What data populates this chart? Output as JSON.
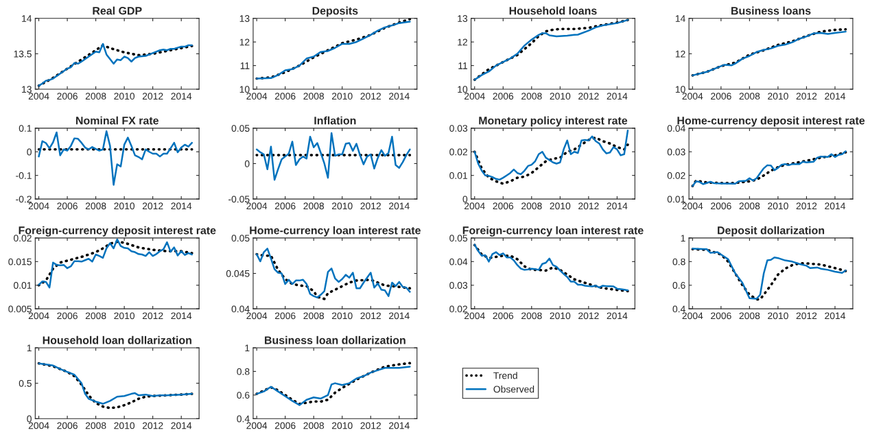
{
  "chart_data": [
    {
      "type": "line",
      "title": "Real GDP",
      "xlim": [
        2003.75,
        2015.25
      ],
      "xticks": [
        2004,
        2006,
        2008,
        2010,
        2012,
        2014
      ],
      "ylim": [
        13,
        14
      ],
      "yticks": [
        13,
        13.5,
        14
      ],
      "series": [
        {
          "color": "#000000",
          "line_style": "dotted",
          "x": [
            2004,
            2005,
            2006,
            2007,
            2008,
            2008.5,
            2009,
            2010,
            2011,
            2012,
            2013,
            2014,
            2014.75
          ],
          "values": [
            13.05,
            13.16,
            13.29,
            13.42,
            13.55,
            13.62,
            13.58,
            13.52,
            13.48,
            13.5,
            13.54,
            13.58,
            13.61
          ]
        },
        {
          "color": "#0072bd",
          "line_style": "solid",
          "x": [
            2004,
            2004.25,
            2004.5,
            2004.75,
            2005,
            2005.5,
            2006,
            2006.25,
            2006.5,
            2006.75,
            2007,
            2007.5,
            2008,
            2008.25,
            2008.5,
            2008.75,
            2009.25,
            2009.5,
            2009.75,
            2010,
            2010.25,
            2010.5,
            2010.75,
            2011,
            2011.5,
            2012,
            2012.5,
            2012.75,
            2013,
            2013.25,
            2013.5,
            2014,
            2014.25,
            2014.5,
            2014.75
          ],
          "values": [
            13.05,
            13.08,
            13.12,
            13.13,
            13.15,
            13.22,
            13.29,
            13.31,
            13.37,
            13.36,
            13.39,
            13.46,
            13.53,
            13.52,
            13.64,
            13.49,
            13.36,
            13.42,
            13.41,
            13.46,
            13.44,
            13.39,
            13.44,
            13.46,
            13.47,
            13.51,
            13.55,
            13.56,
            13.55,
            13.57,
            13.57,
            13.6,
            13.6,
            13.62,
            13.62
          ]
        }
      ]
    },
    {
      "type": "line",
      "title": "Deposits",
      "xlim": [
        2003.75,
        2015.25
      ],
      "xticks": [
        2004,
        2006,
        2008,
        2010,
        2012,
        2014
      ],
      "ylim": [
        10,
        13
      ],
      "yticks": [
        10,
        11,
        12,
        13
      ],
      "series": [
        {
          "color": "#000000",
          "line_style": "dotted",
          "x": [
            2004,
            2005,
            2006,
            2007,
            2008,
            2009,
            2010,
            2011,
            2012,
            2013,
            2014,
            2014.75
          ],
          "values": [
            10.45,
            10.5,
            10.72,
            11.0,
            11.35,
            11.65,
            11.95,
            12.1,
            12.3,
            12.6,
            12.82,
            12.97
          ]
        },
        {
          "color": "#0072bd",
          "line_style": "solid",
          "x": [
            2004,
            2005,
            2005.5,
            2006,
            2006.5,
            2007,
            2007.5,
            2008,
            2008.5,
            2009,
            2009.5,
            2010,
            2010.5,
            2011,
            2011.5,
            2012,
            2012.5,
            2013,
            2013.5,
            2014,
            2014.75
          ],
          "values": [
            10.45,
            10.47,
            10.6,
            10.8,
            10.85,
            11.0,
            11.3,
            11.38,
            11.58,
            11.62,
            11.75,
            11.92,
            11.92,
            12.0,
            12.15,
            12.3,
            12.48,
            12.62,
            12.7,
            12.8,
            12.86
          ]
        }
      ]
    },
    {
      "type": "line",
      "title": "Household loans",
      "xlim": [
        2003.75,
        2015.25
      ],
      "xticks": [
        2004,
        2006,
        2008,
        2010,
        2012,
        2014
      ],
      "ylim": [
        10,
        13
      ],
      "yticks": [
        10,
        11,
        12,
        13
      ],
      "series": [
        {
          "color": "#000000",
          "line_style": "dotted",
          "x": [
            2004,
            2005,
            2006,
            2007,
            2008,
            2008.5,
            2009,
            2009.5,
            2010,
            2011,
            2012,
            2013,
            2014,
            2014.75
          ],
          "values": [
            10.4,
            10.85,
            11.15,
            11.45,
            11.95,
            12.25,
            12.45,
            12.52,
            12.55,
            12.55,
            12.6,
            12.72,
            12.82,
            12.93
          ]
        },
        {
          "color": "#0072bd",
          "line_style": "solid",
          "x": [
            2004,
            2004.5,
            2005,
            2005.5,
            2006,
            2006.5,
            2007,
            2007.5,
            2008,
            2008.5,
            2008.75,
            2009,
            2009.25,
            2009.75,
            2010.5,
            2011,
            2011.25,
            2012,
            2012.5,
            2013,
            2014,
            2014.75
          ],
          "values": [
            10.4,
            10.6,
            10.75,
            11.0,
            11.15,
            11.3,
            11.5,
            11.85,
            12.1,
            12.3,
            12.37,
            12.37,
            12.28,
            12.24,
            12.27,
            12.3,
            12.31,
            12.48,
            12.62,
            12.7,
            12.8,
            12.93
          ]
        }
      ]
    },
    {
      "type": "line",
      "title": "Business loans",
      "xlim": [
        2003.75,
        2015.25
      ],
      "xticks": [
        2004,
        2006,
        2008,
        2010,
        2012,
        2014
      ],
      "ylim": [
        10,
        14
      ],
      "yticks": [
        10,
        12,
        14
      ],
      "series": [
        {
          "color": "#000000",
          "line_style": "dotted",
          "x": [
            2004,
            2005,
            2006,
            2007,
            2008,
            2009,
            2010,
            2011,
            2012,
            2013,
            2014,
            2014.75
          ],
          "values": [
            10.78,
            10.98,
            11.3,
            11.5,
            11.95,
            12.2,
            12.5,
            12.7,
            13.0,
            13.25,
            13.35,
            13.38
          ]
        },
        {
          "color": "#0072bd",
          "line_style": "solid",
          "x": [
            2004,
            2005,
            2006,
            2006.25,
            2006.75,
            2007,
            2007.5,
            2008,
            2008.5,
            2009,
            2009.5,
            2010,
            2010.5,
            2011,
            2011.5,
            2012,
            2012.5,
            2013,
            2013.5,
            2014,
            2014.75
          ],
          "values": [
            10.78,
            10.98,
            11.3,
            11.38,
            11.35,
            11.45,
            11.72,
            11.88,
            12.1,
            12.22,
            12.3,
            12.45,
            12.52,
            12.65,
            12.85,
            12.98,
            13.15,
            13.18,
            13.12,
            13.18,
            13.25
          ]
        }
      ]
    },
    {
      "type": "line",
      "title": "Nominal FX rate",
      "xlim": [
        2003.75,
        2015.25
      ],
      "xticks": [
        2004,
        2006,
        2008,
        2010,
        2012,
        2014
      ],
      "ylim": [
        -0.2,
        0.1
      ],
      "yticks": [
        -0.2,
        -0.1,
        0,
        0.1
      ],
      "series": [
        {
          "color": "#000000",
          "line_style": "dotted",
          "x": [
            2004,
            2014.75
          ],
          "values": [
            0.01,
            0.01
          ]
        },
        {
          "color": "#0072bd",
          "line_style": "solid",
          "x": [
            2004,
            2004.25,
            2004.5,
            2004.75,
            2005,
            2005.25,
            2005.5,
            2005.75,
            2006,
            2006.25,
            2006.5,
            2006.75,
            2007,
            2007.25,
            2007.5,
            2007.75,
            2008,
            2008.25,
            2008.5,
            2008.75,
            2009,
            2009.25,
            2009.5,
            2009.75,
            2010,
            2010.25,
            2010.5,
            2010.75,
            2011,
            2011.25,
            2011.5,
            2011.75,
            2012,
            2012.25,
            2012.5,
            2012.75,
            2013,
            2013.25,
            2013.5,
            2013.75,
            2014,
            2014.25,
            2014.5,
            2014.75
          ],
          "values": [
            -0.02,
            0.045,
            0.037,
            0.015,
            0.04,
            0.082,
            -0.015,
            0.01,
            0.005,
            0.025,
            0.057,
            0.055,
            0.038,
            0.018,
            0.01,
            0.02,
            0.012,
            0.005,
            0.01,
            0.087,
            0.025,
            -0.14,
            -0.053,
            -0.062,
            0.03,
            0.06,
            0.025,
            -0.015,
            -0.022,
            -0.032,
            0.01,
            0.0,
            -0.008,
            -0.008,
            -0.02,
            -0.008,
            -0.008,
            0.015,
            0.038,
            -0.002,
            0.018,
            0.03,
            0.022,
            0.038
          ]
        }
      ]
    },
    {
      "type": "line",
      "title": "Inflation",
      "xlim": [
        2003.75,
        2015.25
      ],
      "xticks": [
        2004,
        2006,
        2008,
        2010,
        2012,
        2014
      ],
      "ylim": [
        -0.05,
        0.05
      ],
      "yticks": [
        -0.05,
        0,
        0.05
      ],
      "series": [
        {
          "color": "#000000",
          "line_style": "dotted",
          "x": [
            2004,
            2014.75
          ],
          "values": [
            0.012,
            0.012
          ]
        },
        {
          "color": "#0072bd",
          "line_style": "solid",
          "x": [
            2004,
            2004.25,
            2004.5,
            2004.75,
            2005,
            2005.25,
            2005.5,
            2005.75,
            2006,
            2006.25,
            2006.5,
            2006.75,
            2007,
            2007.25,
            2007.5,
            2007.75,
            2008,
            2008.25,
            2008.5,
            2008.75,
            2009,
            2009.25,
            2009.5,
            2009.75,
            2010,
            2010.25,
            2010.5,
            2010.75,
            2011,
            2011.25,
            2011.5,
            2011.75,
            2012,
            2012.25,
            2012.5,
            2012.75,
            2013,
            2013.25,
            2013.5,
            2013.75,
            2014,
            2014.25,
            2014.5,
            2014.75
          ],
          "values": [
            0.02,
            0.016,
            0.013,
            -0.008,
            0.024,
            -0.023,
            -0.008,
            0.006,
            0.01,
            0.014,
            0.031,
            -0.002,
            0.006,
            0.01,
            0.007,
            0.038,
            0.023,
            0.029,
            0.015,
            0.0,
            -0.02,
            0.043,
            0.011,
            0.013,
            0.013,
            0.028,
            0.029,
            0.018,
            0.028,
            0.012,
            -0.001,
            0.01,
            0.013,
            -0.007,
            0.008,
            0.019,
            0.011,
            0.015,
            0.038,
            -0.002,
            -0.006,
            0.002,
            0.012,
            0.02
          ]
        }
      ]
    },
    {
      "type": "line",
      "title": "Monetary policy interest rate",
      "xlim": [
        2003.75,
        2015.25
      ],
      "xticks": [
        2004,
        2006,
        2008,
        2010,
        2012,
        2014
      ],
      "ylim": [
        0,
        0.03
      ],
      "yticks": [
        0,
        0.01,
        0.02,
        0.03
      ],
      "series": [
        {
          "color": "#000000",
          "line_style": "dotted",
          "x": [
            2004,
            2004.5,
            2005,
            2005.5,
            2006,
            2006.5,
            2007,
            2007.5,
            2008,
            2008.5,
            2009,
            2009.5,
            2010,
            2010.5,
            2011,
            2011.5,
            2012,
            2012.5,
            2013,
            2013.5,
            2014,
            2014.5,
            2014.75
          ],
          "values": [
            0.02,
            0.013,
            0.009,
            0.0075,
            0.0065,
            0.0075,
            0.009,
            0.0095,
            0.011,
            0.0135,
            0.016,
            0.017,
            0.0175,
            0.02,
            0.021,
            0.023,
            0.025,
            0.026,
            0.0245,
            0.0235,
            0.022,
            0.021,
            0.023
          ]
        },
        {
          "color": "#0072bd",
          "line_style": "solid",
          "x": [
            2004,
            2004.25,
            2004.5,
            2004.75,
            2005,
            2005.25,
            2005.5,
            2005.75,
            2006,
            2006.25,
            2006.5,
            2006.75,
            2007,
            2007.25,
            2007.5,
            2007.75,
            2008,
            2008.25,
            2008.5,
            2008.75,
            2009,
            2009.25,
            2009.5,
            2009.75,
            2010,
            2010.25,
            2010.5,
            2010.75,
            2011,
            2011.25,
            2011.5,
            2011.75,
            2012,
            2012.25,
            2012.5,
            2012.75,
            2013,
            2013.25,
            2013.5,
            2013.75,
            2014,
            2014.25,
            2014.5,
            2014.75
          ],
          "values": [
            0.02,
            0.015,
            0.012,
            0.01,
            0.0098,
            0.0093,
            0.0085,
            0.0082,
            0.009,
            0.01,
            0.011,
            0.0125,
            0.011,
            0.0105,
            0.012,
            0.014,
            0.0145,
            0.016,
            0.019,
            0.02,
            0.0175,
            0.0165,
            0.0155,
            0.015,
            0.0155,
            0.021,
            0.0248,
            0.019,
            0.02,
            0.0195,
            0.0248,
            0.025,
            0.0248,
            0.0265,
            0.0245,
            0.0235,
            0.021,
            0.0193,
            0.0197,
            0.022,
            0.021,
            0.0185,
            0.019,
            0.029
          ]
        }
      ]
    },
    {
      "type": "line",
      "title": "Home-currency deposit interest rate",
      "xlim": [
        2003.75,
        2015.25
      ],
      "xticks": [
        2004,
        2006,
        2008,
        2010,
        2012,
        2014
      ],
      "ylim": [
        0.01,
        0.04
      ],
      "yticks": [
        0.01,
        0.02,
        0.03,
        0.04
      ],
      "series": [
        {
          "color": "#000000",
          "line_style": "dotted",
          "x": [
            2004,
            2004.25,
            2005,
            2006,
            2007,
            2008,
            2008.5,
            2009,
            2009.5,
            2010,
            2010.5,
            2011,
            2012,
            2013,
            2014,
            2014.75
          ],
          "values": [
            0.0155,
            0.0178,
            0.017,
            0.0168,
            0.0168,
            0.0175,
            0.0182,
            0.02,
            0.022,
            0.0235,
            0.0245,
            0.025,
            0.0262,
            0.0275,
            0.0285,
            0.0298
          ]
        },
        {
          "color": "#0072bd",
          "line_style": "solid",
          "x": [
            2004,
            2004.25,
            2004.5,
            2004.75,
            2005,
            2005.25,
            2005.5,
            2006,
            2007,
            2007.25,
            2007.75,
            2008,
            2008.25,
            2008.5,
            2008.75,
            2009,
            2009.25,
            2009.5,
            2009.75,
            2010,
            2010.25,
            2010.5,
            2010.75,
            2011,
            2011.5,
            2011.75,
            2012,
            2012.5,
            2012.75,
            2013,
            2013.5,
            2013.75,
            2014,
            2014.25,
            2014.5,
            2014.75
          ],
          "values": [
            0.0155,
            0.0175,
            0.0172,
            0.0163,
            0.0168,
            0.0173,
            0.0167,
            0.0166,
            0.0165,
            0.0175,
            0.0177,
            0.0188,
            0.0178,
            0.0188,
            0.021,
            0.023,
            0.0243,
            0.0242,
            0.0222,
            0.0232,
            0.0245,
            0.0248,
            0.0243,
            0.0248,
            0.0248,
            0.0258,
            0.0255,
            0.0258,
            0.0275,
            0.028,
            0.0278,
            0.029,
            0.0278,
            0.0287,
            0.029,
            0.0302
          ]
        }
      ]
    },
    {
      "type": "line",
      "title": "Foreign-currency deposit interest rate",
      "xlim": [
        2003.75,
        2015.25
      ],
      "xticks": [
        2004,
        2006,
        2008,
        2010,
        2012,
        2014
      ],
      "ylim": [
        0.005,
        0.02
      ],
      "yticks": [
        0.005,
        0.01,
        0.015,
        0.02
      ],
      "series": [
        {
          "color": "#000000",
          "line_style": "dotted",
          "x": [
            2004,
            2004.5,
            2005,
            2005.5,
            2006,
            2007,
            2008,
            2008.5,
            2009,
            2009.5,
            2010,
            2010.5,
            2011,
            2012,
            2013,
            2014,
            2014.75
          ],
          "values": [
            0.01,
            0.011,
            0.0135,
            0.0148,
            0.0152,
            0.016,
            0.017,
            0.0178,
            0.0188,
            0.0192,
            0.019,
            0.0185,
            0.018,
            0.0175,
            0.0172,
            0.0172,
            0.0168
          ]
        },
        {
          "color": "#0072bd",
          "line_style": "solid",
          "x": [
            2004,
            2004.25,
            2004.5,
            2004.75,
            2005,
            2005.25,
            2005.5,
            2005.75,
            2006,
            2006.25,
            2006.5,
            2006.75,
            2007,
            2007.25,
            2007.5,
            2007.75,
            2008,
            2008.25,
            2008.5,
            2008.75,
            2009,
            2009.25,
            2009.5,
            2009.75,
            2010,
            2010.25,
            2010.5,
            2010.75,
            2011,
            2011.25,
            2011.5,
            2011.75,
            2012,
            2012.25,
            2012.5,
            2012.75,
            2013,
            2013.25,
            2013.5,
            2013.75,
            2014,
            2014.25,
            2014.5,
            2014.75
          ],
          "values": [
            0.0101,
            0.0108,
            0.0107,
            0.0095,
            0.0148,
            0.0143,
            0.0142,
            0.0143,
            0.0136,
            0.014,
            0.0151,
            0.0151,
            0.015,
            0.0153,
            0.0156,
            0.015,
            0.0165,
            0.0162,
            0.0158,
            0.0178,
            0.0189,
            0.0178,
            0.0197,
            0.0183,
            0.0179,
            0.0178,
            0.0172,
            0.017,
            0.0166,
            0.0165,
            0.0162,
            0.017,
            0.0162,
            0.0166,
            0.0172,
            0.0176,
            0.0191,
            0.0171,
            0.018,
            0.0163,
            0.0172,
            0.0164,
            0.0168,
            0.0165
          ]
        }
      ]
    },
    {
      "type": "line",
      "title": "Home-currency loan interest rate",
      "xlim": [
        2003.75,
        2015.25
      ],
      "xticks": [
        2004,
        2006,
        2008,
        2010,
        2012,
        2014
      ],
      "ylim": [
        0.04,
        0.05
      ],
      "yticks": [
        0.04,
        0.045,
        0.05
      ],
      "series": [
        {
          "color": "#000000",
          "line_style": "dotted",
          "x": [
            2004,
            2004.5,
            2005,
            2005.5,
            2006,
            2006.5,
            2007,
            2007.5,
            2008,
            2008.25,
            2008.75,
            2009,
            2009.5,
            2010,
            2010.5,
            2011,
            2012,
            2012.5,
            2013,
            2014,
            2014.75
          ],
          "values": [
            0.0477,
            0.0475,
            0.0475,
            0.0455,
            0.0442,
            0.0435,
            0.0433,
            0.0432,
            0.0425,
            0.0417,
            0.0414,
            0.0422,
            0.0427,
            0.0432,
            0.0437,
            0.044,
            0.0441,
            0.0437,
            0.0433,
            0.0431,
            0.0429
          ]
        },
        {
          "color": "#0072bd",
          "line_style": "solid",
          "x": [
            2004,
            2004.25,
            2004.5,
            2004.75,
            2005,
            2005.25,
            2005.5,
            2005.75,
            2006,
            2006.25,
            2006.5,
            2006.75,
            2007,
            2007.25,
            2007.5,
            2007.75,
            2008,
            2008.25,
            2008.5,
            2008.75,
            2009,
            2009.25,
            2009.5,
            2009.75,
            2010,
            2010.25,
            2010.5,
            2010.75,
            2011,
            2011.25,
            2011.5,
            2011.75,
            2012,
            2012.25,
            2012.5,
            2012.75,
            2013,
            2013.25,
            2013.5,
            2013.75,
            2014,
            2014.25,
            2014.5,
            2014.75
          ],
          "values": [
            0.0477,
            0.0467,
            0.048,
            0.0485,
            0.0471,
            0.0456,
            0.0451,
            0.045,
            0.0435,
            0.0441,
            0.0435,
            0.044,
            0.044,
            0.0441,
            0.0435,
            0.0421,
            0.0418,
            0.0416,
            0.042,
            0.0425,
            0.0452,
            0.0457,
            0.0443,
            0.0438,
            0.0442,
            0.0448,
            0.0444,
            0.0451,
            0.0429,
            0.0429,
            0.0437,
            0.0444,
            0.0451,
            0.043,
            0.0436,
            0.0427,
            0.0426,
            0.0418,
            0.0437,
            0.0432,
            0.0438,
            0.0431,
            0.043,
            0.0424
          ]
        }
      ]
    },
    {
      "type": "line",
      "title": "Foreign-currency loan interest rate",
      "xlim": [
        2003.75,
        2015.25
      ],
      "xticks": [
        2004,
        2006,
        2008,
        2010,
        2012,
        2014
      ],
      "ylim": [
        0.02,
        0.05
      ],
      "yticks": [
        0.02,
        0.03,
        0.04,
        0.05
      ],
      "series": [
        {
          "color": "#000000",
          "line_style": "dotted",
          "x": [
            2004,
            2004.5,
            2005,
            2005.5,
            2006,
            2006.5,
            2007,
            2007.5,
            2008,
            2008.5,
            2009,
            2009.5,
            2010,
            2010.5,
            2011,
            2012,
            2013,
            2014,
            2014.75
          ],
          "values": [
            0.047,
            0.043,
            0.0415,
            0.042,
            0.0425,
            0.0425,
            0.041,
            0.038,
            0.0365,
            0.0365,
            0.0362,
            0.0375,
            0.0365,
            0.0345,
            0.0325,
            0.0305,
            0.0288,
            0.028,
            0.0275
          ]
        },
        {
          "color": "#0072bd",
          "line_style": "solid",
          "x": [
            2004,
            2004.25,
            2004.5,
            2004.75,
            2005,
            2005.25,
            2005.5,
            2005.75,
            2006,
            2006.25,
            2006.5,
            2006.75,
            2007,
            2007.25,
            2007.5,
            2007.75,
            2008,
            2008.25,
            2008.5,
            2008.75,
            2009,
            2009.25,
            2009.5,
            2009.75,
            2010,
            2010.25,
            2010.5,
            2010.75,
            2011,
            2011.25,
            2011.5,
            2011.75,
            2012,
            2012.25,
            2012.5,
            2012.75,
            2013,
            2013.25,
            2013.5,
            2013.75,
            2014,
            2014.25,
            2014.5,
            2014.75
          ],
          "values": [
            0.0472,
            0.0445,
            0.0425,
            0.0427,
            0.04,
            0.0432,
            0.044,
            0.0428,
            0.0435,
            0.0418,
            0.0418,
            0.0405,
            0.0385,
            0.037,
            0.0365,
            0.0367,
            0.037,
            0.0368,
            0.0365,
            0.039,
            0.0395,
            0.0413,
            0.0385,
            0.0378,
            0.0362,
            0.0348,
            0.0335,
            0.0315,
            0.0315,
            0.0302,
            0.0302,
            0.0298,
            0.0296,
            0.0295,
            0.0298,
            0.029,
            0.0298,
            0.0296,
            0.0296,
            0.0295,
            0.0285,
            0.0283,
            0.0281,
            0.0278
          ]
        }
      ]
    },
    {
      "type": "line",
      "title": "Deposit dollarization",
      "xlim": [
        2003.75,
        2015.25
      ],
      "xticks": [
        2004,
        2006,
        2008,
        2010,
        2012,
        2014
      ],
      "ylim": [
        0.4,
        1
      ],
      "yticks": [
        0.4,
        0.6,
        0.8,
        1
      ],
      "series": [
        {
          "color": "#000000",
          "line_style": "dotted",
          "x": [
            2004,
            2005,
            2005.5,
            2006,
            2006.5,
            2007,
            2007.5,
            2008,
            2008.5,
            2008.75,
            2009,
            2009.5,
            2010,
            2010.5,
            2011,
            2011.5,
            2012,
            2013,
            2014,
            2014.75
          ],
          "values": [
            0.905,
            0.9,
            0.88,
            0.86,
            0.8,
            0.7,
            0.6,
            0.52,
            0.48,
            0.48,
            0.52,
            0.6,
            0.69,
            0.74,
            0.77,
            0.785,
            0.785,
            0.775,
            0.745,
            0.72
          ]
        },
        {
          "color": "#0072bd",
          "line_style": "solid",
          "x": [
            2004,
            2005,
            2005.25,
            2005.75,
            2006,
            2006.5,
            2007,
            2007.5,
            2008,
            2008.5,
            2008.75,
            2009,
            2009.25,
            2009.5,
            2009.75,
            2010,
            2010.5,
            2011,
            2011.5,
            2012,
            2012.25,
            2012.75,
            2013,
            2013.5,
            2014,
            2014.5,
            2014.75
          ],
          "values": [
            0.91,
            0.905,
            0.875,
            0.88,
            0.86,
            0.82,
            0.7,
            0.62,
            0.49,
            0.485,
            0.52,
            0.7,
            0.81,
            0.815,
            0.835,
            0.83,
            0.81,
            0.8,
            0.78,
            0.765,
            0.745,
            0.75,
            0.74,
            0.73,
            0.715,
            0.705,
            0.725
          ]
        }
      ]
    },
    {
      "type": "line",
      "title": "Household loan dollarization",
      "xlim": [
        2003.75,
        2015.25
      ],
      "xticks": [
        2004,
        2006,
        2008,
        2010,
        2012,
        2014
      ],
      "ylim": [
        0,
        1
      ],
      "yticks": [
        0,
        0.5,
        1
      ],
      "series": [
        {
          "color": "#000000",
          "line_style": "dotted",
          "x": [
            2004,
            2005,
            2005.5,
            2006,
            2006.5,
            2007,
            2007.5,
            2008,
            2008.5,
            2009,
            2009.5,
            2010,
            2010.5,
            2011,
            2011.5,
            2012,
            2013,
            2014,
            2014.75
          ],
          "values": [
            0.78,
            0.74,
            0.7,
            0.66,
            0.6,
            0.48,
            0.33,
            0.22,
            0.17,
            0.15,
            0.16,
            0.19,
            0.23,
            0.28,
            0.31,
            0.32,
            0.33,
            0.34,
            0.35
          ]
        },
        {
          "color": "#0072bd",
          "line_style": "solid",
          "x": [
            2004,
            2005,
            2005.5,
            2006,
            2006.5,
            2007,
            2007.25,
            2007.5,
            2008,
            2008.5,
            2009,
            2009.5,
            2010,
            2010.5,
            2010.75,
            2011,
            2011.5,
            2012,
            2012.5,
            2013,
            2014,
            2014.75
          ],
          "values": [
            0.78,
            0.75,
            0.7,
            0.66,
            0.62,
            0.5,
            0.35,
            0.28,
            0.24,
            0.21,
            0.25,
            0.31,
            0.32,
            0.35,
            0.36,
            0.33,
            0.34,
            0.32,
            0.33,
            0.33,
            0.34,
            0.35
          ]
        }
      ]
    },
    {
      "type": "line",
      "title": "Business loan dollarization",
      "xlim": [
        2003.75,
        2015.25
      ],
      "xticks": [
        2004,
        2006,
        2008,
        2010,
        2012,
        2014
      ],
      "ylim": [
        0.4,
        1
      ],
      "yticks": [
        0.4,
        0.6,
        0.8,
        1
      ],
      "legend": "right",
      "series": [
        {
          "name": "Trend",
          "color": "#000000",
          "line_style": "dotted",
          "x": [
            2004,
            2005,
            2005.5,
            2006,
            2006.5,
            2007,
            2007.5,
            2008,
            2008.5,
            2009,
            2009.5,
            2010,
            2011,
            2012,
            2013,
            2014,
            2014.75
          ],
          "values": [
            0.61,
            0.665,
            0.64,
            0.6,
            0.56,
            0.525,
            0.535,
            0.545,
            0.545,
            0.56,
            0.62,
            0.66,
            0.73,
            0.79,
            0.84,
            0.86,
            0.87
          ]
        },
        {
          "name": "Observed",
          "color": "#0072bd",
          "line_style": "solid",
          "x": [
            2004,
            2004.5,
            2005,
            2005.5,
            2006,
            2006.5,
            2007,
            2007.5,
            2008,
            2008.5,
            2009,
            2009.25,
            2009.5,
            2010,
            2010.5,
            2011,
            2011.5,
            2012,
            2012.5,
            2013,
            2013.5,
            2014,
            2014.75
          ],
          "values": [
            0.61,
            0.63,
            0.67,
            0.63,
            0.59,
            0.55,
            0.515,
            0.56,
            0.58,
            0.57,
            0.6,
            0.69,
            0.7,
            0.685,
            0.7,
            0.74,
            0.76,
            0.79,
            0.81,
            0.83,
            0.83,
            0.83,
            0.84
          ]
        }
      ]
    }
  ]
}
